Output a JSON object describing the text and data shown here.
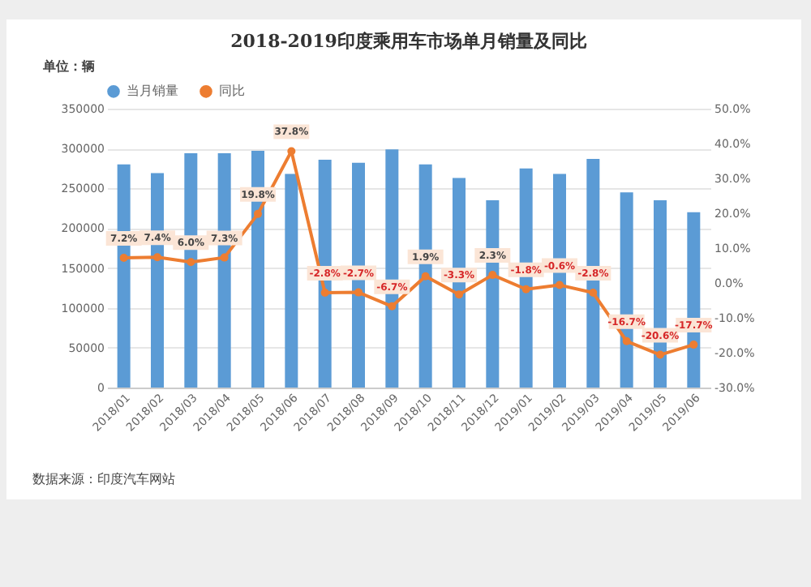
{
  "chart_data": {
    "type": "bar",
    "title": "2018-2019印度乘用车市场单月销量及同比",
    "ylabel": "单位：辆",
    "categories": [
      "2018/01",
      "2018/02",
      "2018/03",
      "2018/04",
      "2018/05",
      "2018/06",
      "2018/07",
      "2018/08",
      "2018/09",
      "2018/10",
      "2018/11",
      "2018/12",
      "2019/01",
      "2019/02",
      "2019/03",
      "2019/04",
      "2019/05",
      "2019/06"
    ],
    "series": [
      {
        "name": "当月销量",
        "color": "#5b9bd5",
        "values": [
          280000,
          269000,
          294000,
          294000,
          297000,
          268000,
          286000,
          282000,
          299000,
          280000,
          263000,
          235000,
          275000,
          268000,
          287000,
          245000,
          235000,
          220000
        ]
      },
      {
        "name": "同比",
        "type": "line",
        "axis": "y2",
        "color": "#ed7d31",
        "values": [
          7.2,
          7.4,
          6.0,
          7.3,
          19.8,
          37.8,
          -2.8,
          -2.7,
          -6.7,
          1.9,
          -3.3,
          2.3,
          -1.8,
          -0.6,
          -2.8,
          -16.7,
          -20.6,
          -17.7
        ],
        "value_labels": [
          "7.2%",
          "7.4%",
          "6.0%",
          "7.3%",
          "19.8%",
          "37.8%",
          "-2.8%",
          "-2.7%",
          "-6.7%",
          "1.9%",
          "-3.3%",
          "2.3%",
          "-1.8%",
          "-0.6%",
          "-2.8%",
          "-16.7%",
          "-20.6%",
          "-17.7%"
        ]
      }
    ],
    "ylim": [
      0,
      350000
    ],
    "yticks": [
      0,
      50000,
      100000,
      150000,
      200000,
      250000,
      300000,
      350000
    ],
    "y2lim": [
      -30,
      50
    ],
    "y2ticks": [
      {
        "value": -30,
        "label": "-30.0%"
      },
      {
        "value": -20,
        "label": "-20.0%"
      },
      {
        "value": -10,
        "label": "-10.0%"
      },
      {
        "value": 0,
        "label": "0.0%"
      },
      {
        "value": 10,
        "label": "10.0%"
      },
      {
        "value": 20,
        "label": "20.0%"
      },
      {
        "value": 30,
        "label": "30.0%"
      },
      {
        "value": 40,
        "label": "40.0%"
      },
      {
        "value": 50,
        "label": "50.0%"
      }
    ],
    "grid": "y",
    "legend": "top",
    "marker": "circle",
    "line_style": "solid",
    "annotations": [
      "数据来源：印度汽车网站"
    ]
  }
}
